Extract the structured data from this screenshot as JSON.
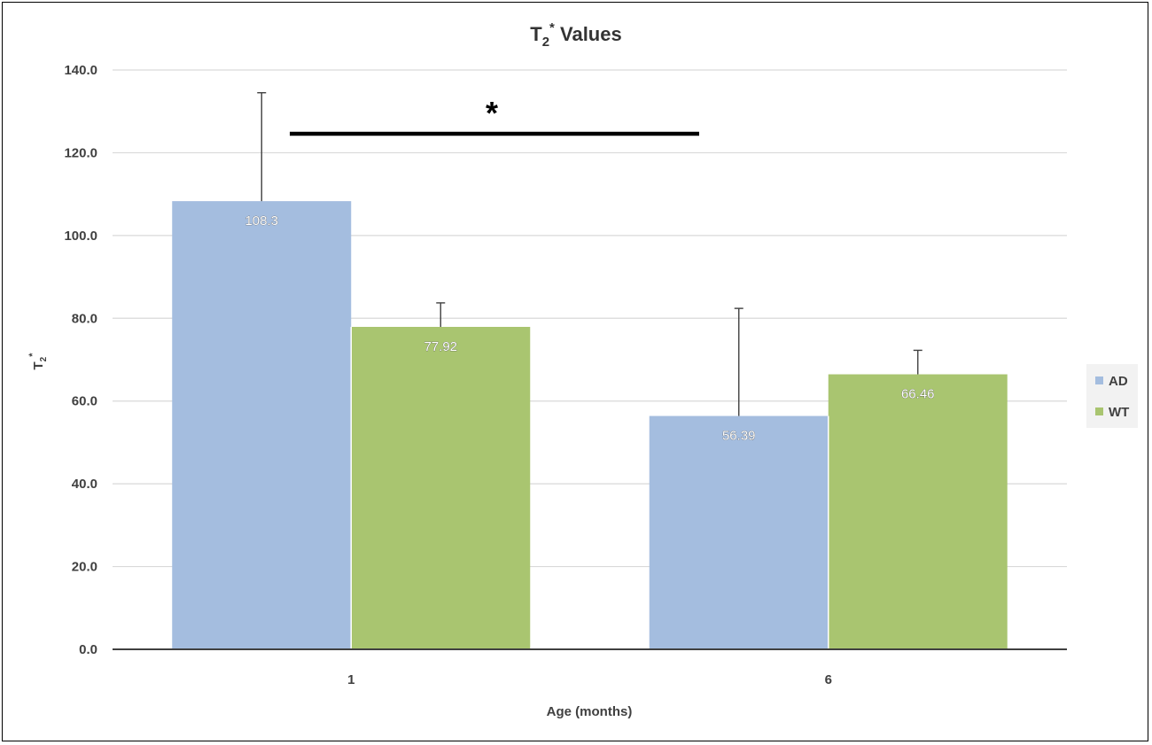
{
  "chart_data": {
    "type": "bar",
    "title": "Values",
    "title_symbol": {
      "base": "T",
      "subscript": "2",
      "superscript": "*"
    },
    "xlabel": "Age (months)",
    "ylabel": {
      "base": "T",
      "subscript": "2",
      "superscript": "*"
    },
    "categories": [
      "1",
      "6"
    ],
    "ylim": [
      0,
      140
    ],
    "yticks": [
      0,
      20,
      40,
      60,
      80,
      100,
      120,
      140
    ],
    "ytick_labels": [
      "0.0",
      "20.0",
      "40.0",
      "60.0",
      "80.0",
      "100.0",
      "120.0",
      "140.0"
    ],
    "grid": true,
    "legend_position": "right",
    "series": [
      {
        "name": "AD",
        "color": "#a4bddf",
        "values": [
          108.3,
          56.39
        ],
        "labels": [
          "108.3",
          "56.39"
        ],
        "error": [
          26.2,
          26.0
        ]
      },
      {
        "name": "WT",
        "color": "#a9c570",
        "values": [
          77.92,
          66.46
        ],
        "labels": [
          "77.92",
          "66.46"
        ],
        "error": [
          5.8,
          5.8
        ]
      }
    ],
    "annotations": [
      {
        "type": "significance",
        "text": "*",
        "between": [
          "1",
          "6"
        ]
      }
    ]
  }
}
